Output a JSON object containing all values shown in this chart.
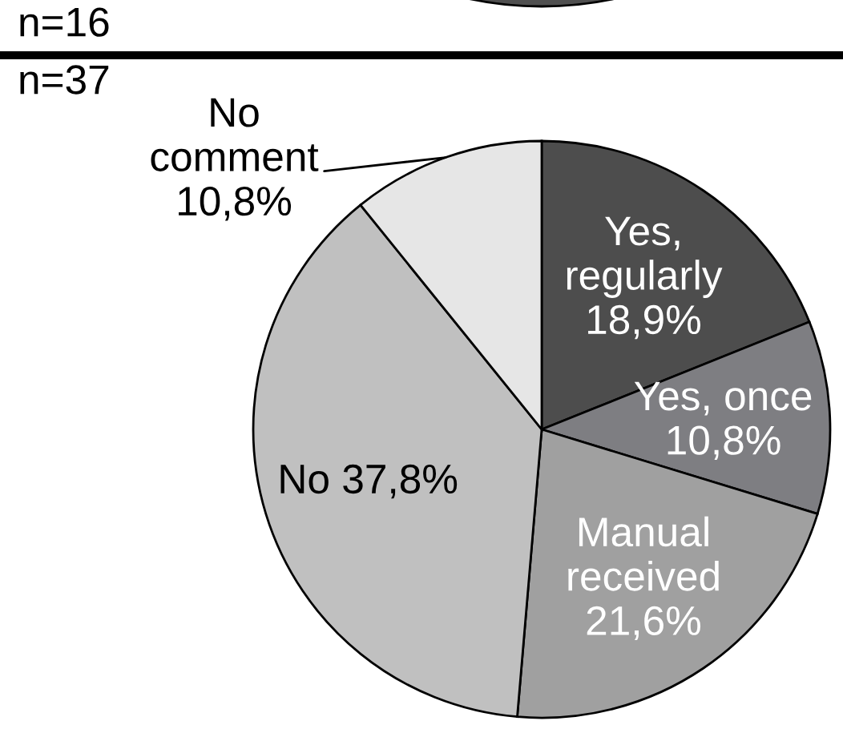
{
  "chart_data": [
    {
      "type": "other",
      "annotations": [
        "n=16"
      ]
    },
    {
      "type": "pie",
      "categories": [
        "Yes,\nregularly",
        "Yes, once",
        "Manual\nreceived",
        "No",
        "No\ncomment"
      ],
      "values": [
        18.9,
        10.8,
        21.6,
        37.8,
        10.8
      ],
      "colors": [
        "#4d4d4d",
        "#7e7e82",
        "#a0a0a0",
        "#c0c0c0",
        "#e6e6e6"
      ],
      "value_labels": [
        "18,9%",
        "10,8%",
        "21,6%",
        "37,8%",
        "10,8%"
      ],
      "annotations": [
        "n=37"
      ]
    }
  ]
}
